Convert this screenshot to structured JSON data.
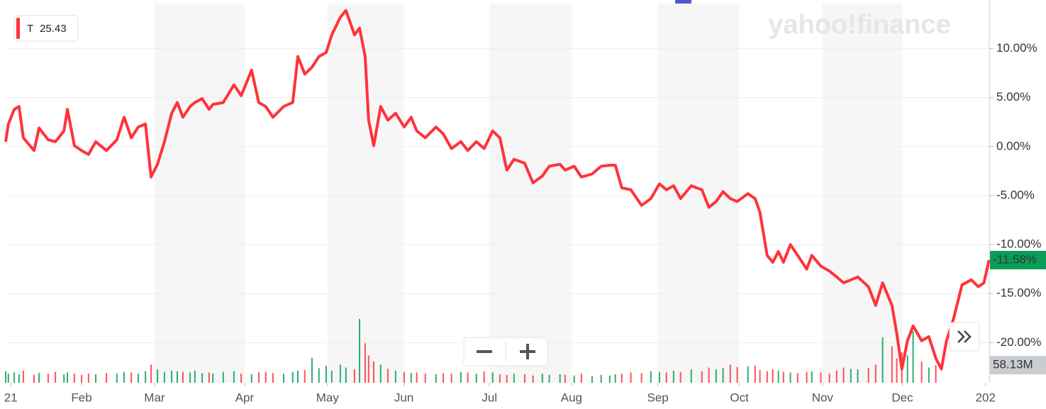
{
  "chart_data": {
    "type": "line",
    "watermark": "yahoo!finance",
    "legend": {
      "symbol": "T",
      "price": 25.43
    },
    "current_label": "-11.58%",
    "xlim": [
      0,
      368
    ],
    "xticks": [
      {
        "value": 1.9,
        "label": "21"
      },
      {
        "value": 28.4,
        "label": "Feb"
      },
      {
        "value": 55.7,
        "label": "Mar"
      },
      {
        "value": 89.4,
        "label": "Apr"
      },
      {
        "value": 120.4,
        "label": "May"
      },
      {
        "value": 149,
        "label": "Jun"
      },
      {
        "value": 181,
        "label": "Jul"
      },
      {
        "value": 211.7,
        "label": "Aug"
      },
      {
        "value": 244,
        "label": "Sep"
      },
      {
        "value": 274.5,
        "label": "Oct"
      },
      {
        "value": 305.6,
        "label": "Nov"
      },
      {
        "value": 335.5,
        "label": "Dec"
      },
      {
        "value": 366.6,
        "label": "202"
      }
    ],
    "ylim": [
      -24.1,
      14.6
    ],
    "yticks": [
      {
        "value": 10,
        "label": "10.00%"
      },
      {
        "value": 5,
        "label": "5.00%"
      },
      {
        "value": 0,
        "label": "0.00%"
      },
      {
        "value": -5,
        "label": "-5.00%"
      },
      {
        "value": -10,
        "label": "-10.00%"
      },
      {
        "value": -15,
        "label": "-15.00%"
      },
      {
        "value": -20,
        "label": "-20.00%"
      }
    ],
    "grid": true,
    "x": [
      0,
      1,
      3.2,
      5,
      6.6,
      10.6,
      12.5,
      15.9,
      18.6,
      21.8,
      23.1,
      25.7,
      28.4,
      31,
      33.7,
      37.7,
      41.6,
      44.3,
      47,
      49.6,
      52.3,
      54.4,
      56.8,
      59.4,
      62.1,
      64.2,
      66.3,
      69,
      70.8,
      73.5,
      76.1,
      77.5,
      81.4,
      85.4,
      88.1,
      92,
      94.7,
      97.3,
      100,
      104,
      107.4,
      109.3,
      111.9,
      114.6,
      117.2,
      119.9,
      122,
      125.2,
      127.3,
      130.5,
      132.4,
      134.5,
      135.8,
      137.7,
      140.3,
      143,
      145.9,
      149.1,
      151.7,
      153.8,
      157,
      161,
      163.7,
      166.8,
      170.3,
      172.9,
      176.1,
      179,
      182.2,
      184.9,
      187.5,
      190.2,
      194.2,
      197.3,
      200.8,
      203.4,
      207.4,
      209.3,
      212.7,
      215.4,
      219.4,
      222.8,
      226,
      228.1,
      230.5,
      233.9,
      237.9,
      241.4,
      244.6,
      247.2,
      249.9,
      252.5,
      256.5,
      260.5,
      263.1,
      265.8,
      268.4,
      271.1,
      273.7,
      277.7,
      280.4,
      282.2,
      284.9,
      287,
      289.1,
      291,
      293.6,
      296.3,
      299.7,
      301.6,
      305,
      308.2,
      310.9,
      313.5,
      316.2,
      318.8,
      322.8,
      325.5,
      328.1,
      331.6,
      333.4,
      335.3,
      337.4,
      339.5,
      342.7,
      345.4,
      348,
      350.1,
      352,
      354.6,
      357.8,
      361.3,
      363.9,
      366,
      367.9
    ],
    "series": [
      {
        "name": "T",
        "color": "#ff333a",
        "values": [
          0.5,
          2.3,
          3.8,
          4.1,
          0.9,
          -0.4,
          1.9,
          0.7,
          0.5,
          1.6,
          3.8,
          0.1,
          -0.4,
          -0.8,
          0.5,
          -0.4,
          0.7,
          3.0,
          0.9,
          2.0,
          2.3,
          -3.1,
          -1.8,
          0.5,
          3.4,
          4.5,
          3.0,
          4.1,
          4.5,
          4.9,
          3.8,
          4.3,
          4.5,
          6.3,
          5.2,
          7.8,
          4.5,
          4.1,
          3.0,
          4.1,
          4.5,
          9.2,
          7.4,
          8.1,
          9.2,
          9.6,
          11.4,
          13.2,
          13.9,
          11.4,
          12.1,
          9.2,
          2.7,
          0.1,
          4.1,
          2.7,
          3.4,
          2.0,
          3.0,
          1.6,
          0.9,
          2.0,
          1.3,
          -0.2,
          0.5,
          -0.4,
          0.5,
          -0.2,
          1.6,
          0.9,
          -2.4,
          -1.3,
          -1.7,
          -3.7,
          -3.0,
          -2.0,
          -1.8,
          -2.4,
          -2.0,
          -3.1,
          -2.8,
          -2.0,
          -1.9,
          -1.9,
          -4.2,
          -4.4,
          -6.0,
          -5.3,
          -3.8,
          -4.4,
          -4.0,
          -5.3,
          -4.0,
          -4.4,
          -6.2,
          -5.6,
          -4.6,
          -5.3,
          -5.6,
          -4.8,
          -5.3,
          -6.7,
          -11.1,
          -11.8,
          -10.7,
          -11.8,
          -10.0,
          -11.1,
          -12.5,
          -11.1,
          -12.2,
          -12.7,
          -13.3,
          -13.9,
          -13.6,
          -13.3,
          -14.3,
          -16.2,
          -13.9,
          -16.2,
          -19.1,
          -22.7,
          -19.8,
          -18.3,
          -19.8,
          -19.4,
          -21.6,
          -22.7,
          -19.8,
          -17.6,
          -14.1,
          -13.6,
          -14.3,
          -13.9,
          -11.58
        ]
      }
    ],
    "volume": {
      "label": "58.13M",
      "up_color": "#0a9d58",
      "down_color": "#ff333a",
      "values": [
        38,
        30,
        34,
        28,
        40,
        26,
        32,
        30,
        36,
        28,
        34,
        30,
        26,
        30,
        28,
        32,
        30,
        36,
        34,
        30,
        38,
        60,
        44,
        36,
        40,
        38,
        36,
        34,
        40,
        32,
        34,
        30,
        36,
        38,
        30,
        28,
        34,
        36,
        32,
        30,
        36,
        40,
        42,
        82,
        48,
        56,
        40,
        60,
        50,
        44,
        210,
        130,
        90,
        70,
        60,
        46,
        40,
        36,
        32,
        34,
        30,
        28,
        32,
        30,
        36,
        34,
        30,
        38,
        34,
        28,
        26,
        30,
        28,
        24,
        30,
        26,
        28,
        26,
        24,
        30,
        22,
        26,
        24,
        28,
        30,
        34,
        32,
        38,
        36,
        34,
        40,
        36,
        44,
        38,
        50,
        44,
        48,
        60,
        52,
        54,
        56,
        42,
        38,
        44,
        40,
        36,
        34,
        32,
        36,
        38,
        34,
        30,
        40,
        50,
        46,
        44,
        48,
        60,
        150,
        120,
        80,
        100,
        90,
        170,
        70,
        50,
        58.13
      ]
    }
  }
}
